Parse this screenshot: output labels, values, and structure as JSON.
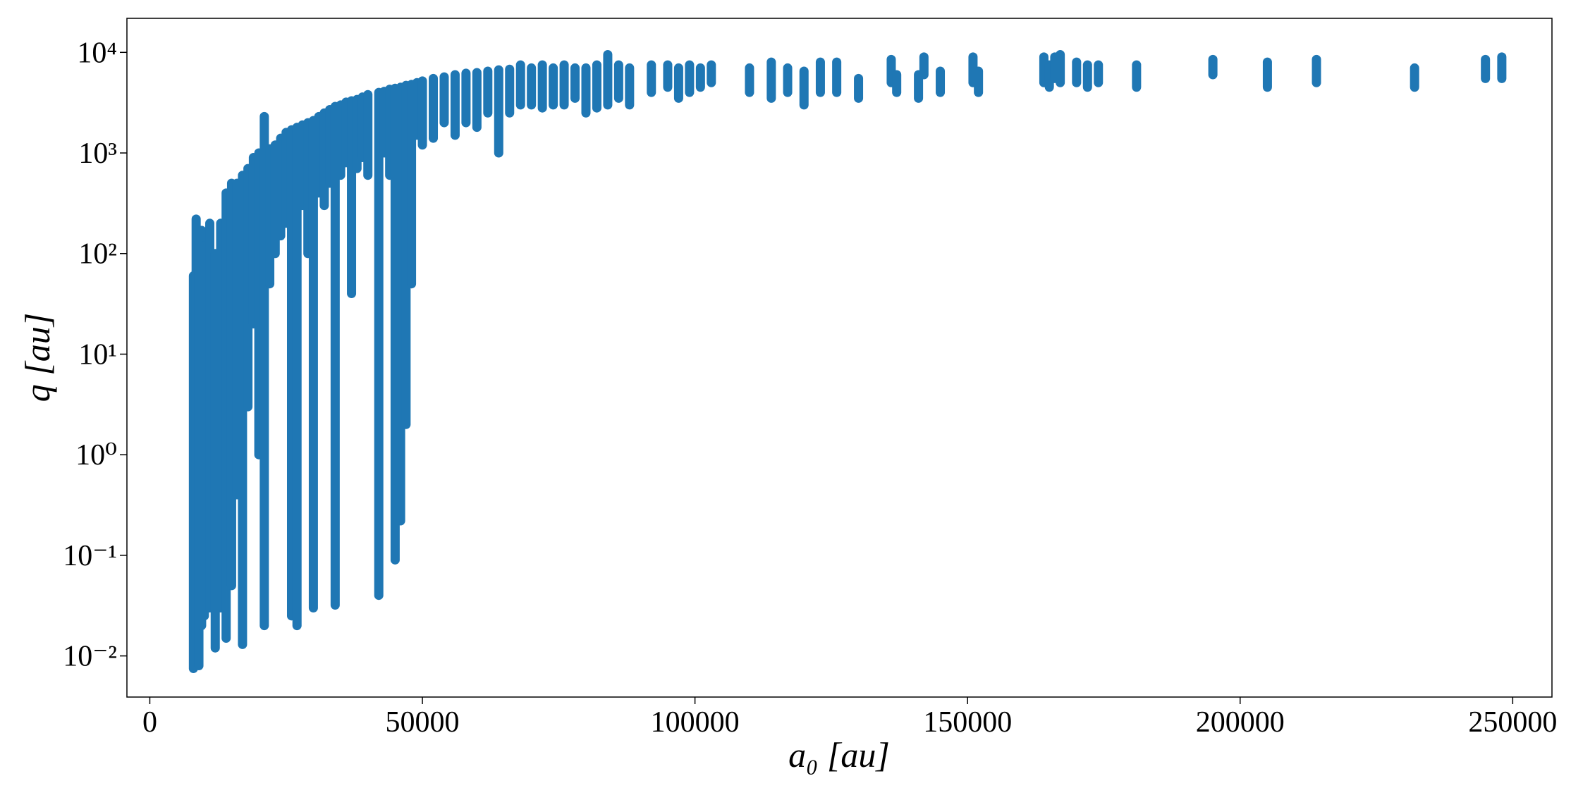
{
  "chart_data": {
    "type": "scatter",
    "xlabel": "a₀ [au]",
    "ylabel": "q [au]",
    "color": "#1f77b4",
    "log_y": true,
    "xlim": [
      -4200,
      257200
    ],
    "ylim": [
      0.0039,
      21800
    ],
    "xticks": [
      0,
      50000,
      100000,
      150000,
      200000,
      250000
    ],
    "yticks": [
      {
        "value": 0.01,
        "label": "10⁻²"
      },
      {
        "value": 0.1,
        "label": "10⁻¹"
      },
      {
        "value": 1,
        "label": "10⁰"
      },
      {
        "value": 10,
        "label": "10¹"
      },
      {
        "value": 100,
        "label": "10²"
      },
      {
        "value": 1000,
        "label": "10³"
      },
      {
        "value": 10000,
        "label": "10⁴"
      }
    ],
    "x": [
      8000,
      8500,
      9000,
      9500,
      10000,
      11000,
      12000,
      13000,
      14000,
      15000,
      16000,
      17000,
      18000,
      19000,
      20000,
      21000,
      22000,
      23000,
      24000,
      25000,
      26000,
      27000,
      28000,
      29000,
      30000,
      31000,
      32000,
      33000,
      34000,
      35000,
      36000,
      37000,
      38000,
      39000,
      40000,
      42000,
      43000,
      44000,
      45000,
      46000,
      47000,
      48000,
      49000,
      50000,
      52000,
      54000,
      56000,
      58000,
      60000,
      62000,
      64000,
      66000,
      68000,
      70000,
      72000,
      74000,
      76000,
      78000,
      80000,
      82000,
      84000,
      86000,
      88000,
      92000,
      95000,
      97000,
      99000,
      101000,
      103000,
      110000,
      114000,
      117000,
      120000,
      123000,
      126000,
      130000,
      136000,
      137000,
      141000,
      142000,
      145000,
      151000,
      152000,
      164000,
      165000,
      166000,
      167000,
      170000,
      172000,
      174000,
      181000,
      195000,
      205000,
      214000,
      232000,
      245000,
      248000
    ],
    "ymin": [
      0.0075,
      0.015,
      0.008,
      0.02,
      0.025,
      0.03,
      0.012,
      0.03,
      0.015,
      0.05,
      0.4,
      0.013,
      3,
      20,
      1,
      0.02,
      50,
      100,
      150,
      200,
      0.025,
      0.02,
      300,
      100,
      0.03,
      400,
      300,
      500,
      0.032,
      600,
      800,
      40,
      700,
      900,
      600,
      0.04,
      1000,
      600,
      0.09,
      0.22,
      2,
      50,
      1500,
      1200,
      1400,
      2000,
      1500,
      2000,
      1800,
      2500,
      1000,
      2500,
      3000,
      3000,
      2800,
      3000,
      3000,
      3500,
      2500,
      2800,
      3000,
      3500,
      3000,
      4000,
      4500,
      3500,
      4000,
      4500,
      5000,
      4000,
      3500,
      4000,
      3000,
      4000,
      4000,
      3500,
      5000,
      4000,
      3500,
      6000,
      4000,
      5000,
      4000,
      5000,
      4500,
      5500,
      5000,
      5000,
      4500,
      5000,
      4500,
      6000,
      4500,
      5000,
      4500,
      5500,
      5500
    ],
    "ymax": [
      60,
      220,
      130,
      170,
      120,
      200,
      100,
      200,
      400,
      500,
      500,
      600,
      700,
      900,
      1000,
      2300,
      1100,
      1200,
      1400,
      1600,
      1700,
      1800,
      1900,
      2000,
      2100,
      2300,
      2500,
      2700,
      2900,
      3000,
      3200,
      3300,
      3400,
      3600,
      3800,
      4000,
      4100,
      4300,
      4400,
      4500,
      4700,
      4800,
      5000,
      5200,
      5500,
      5700,
      6000,
      6200,
      6300,
      6500,
      6700,
      6800,
      7500,
      7000,
      7500,
      7000,
      7500,
      7000,
      7000,
      7500,
      9500,
      7500,
      7000,
      7500,
      7500,
      7000,
      7500,
      7000,
      7500,
      7000,
      8000,
      7000,
      6500,
      8000,
      8000,
      5500,
      8500,
      6000,
      6000,
      9000,
      6500,
      9000,
      6500,
      9000,
      7500,
      9000,
      9500,
      8000,
      7500,
      7500,
      7500,
      8500,
      8000,
      8500,
      7000,
      8500,
      9000
    ]
  }
}
